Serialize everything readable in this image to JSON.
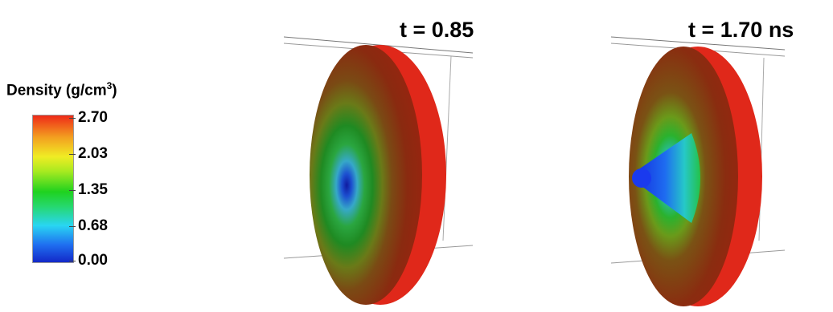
{
  "legend": {
    "title": "Density (g/cm",
    "title_sup": "3",
    "title_close": ")",
    "ticks": [
      "2.70",
      "2.03",
      "1.35",
      "0.68",
      "0.00"
    ],
    "colormap": [
      "#1328c8",
      "#1f6ff0",
      "#29d6f2",
      "#1fd21f",
      "#f0ec24",
      "#f3a020",
      "#ee2a18"
    ]
  },
  "panels": [
    {
      "time_label": "t = 0.85 ns"
    },
    {
      "time_label": "t = 1.70 ns"
    }
  ]
}
